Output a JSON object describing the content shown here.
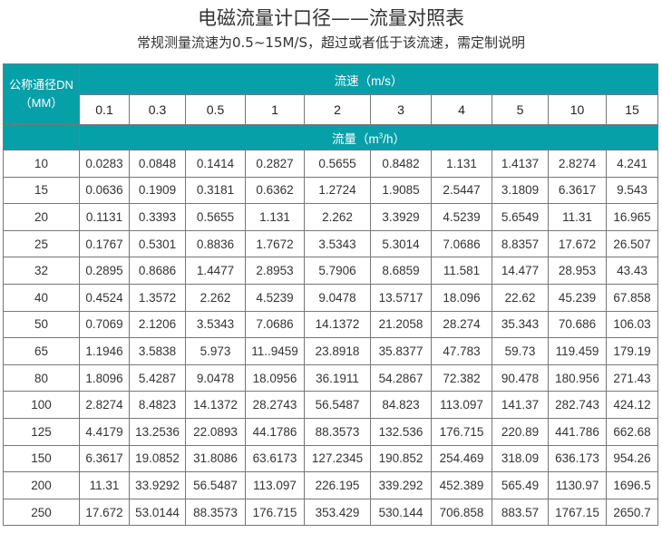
{
  "title": "电磁流量计口径——流量对照表",
  "subtitle": "常规测量流速为0.5~15M/S，超过或者低于该流速，需定制说明",
  "table": {
    "dn_header_line1": "公称通径DN",
    "dn_header_line2": "（MM）",
    "velocity_header": "流速（m/s）",
    "flow_header_prefix": "流量（m",
    "flow_header_sup": "3",
    "flow_header_suffix": "/h）",
    "velocities": [
      "0.1",
      "0.3",
      "0.5",
      "1",
      "2",
      "3",
      "4",
      "5",
      "10",
      "15"
    ],
    "rows": [
      {
        "dn": "10",
        "values": [
          "0.0283",
          "0.0848",
          "0.1414",
          "0.2827",
          "0.5655",
          "0.8482",
          "1.131",
          "1.4137",
          "2.8274",
          "4.241"
        ]
      },
      {
        "dn": "15",
        "values": [
          "0.0636",
          "0.1909",
          "0.3181",
          "0.6362",
          "1.2724",
          "1.9085",
          "2.5447",
          "3.1809",
          "6.3617",
          "9.543"
        ]
      },
      {
        "dn": "20",
        "values": [
          "0.1131",
          "0.3393",
          "0.5655",
          "1.131",
          "2.262",
          "3.3929",
          "4.5239",
          "5.6549",
          "11.31",
          "16.965"
        ]
      },
      {
        "dn": "25",
        "values": [
          "0.1767",
          "0.5301",
          "0.8836",
          "1.7672",
          "3.5343",
          "5.3014",
          "7.0686",
          "8.8357",
          "17.672",
          "26.507"
        ]
      },
      {
        "dn": "32",
        "values": [
          "0.2895",
          "0.8686",
          "1.4477",
          "2.8953",
          "5.7906",
          "8.6859",
          "11.581",
          "14.477",
          "28.953",
          "43.43"
        ]
      },
      {
        "dn": "40",
        "values": [
          "0.4524",
          "1.3572",
          "2.262",
          "4.5239",
          "9.0478",
          "13.5717",
          "18.096",
          "22.62",
          "45.239",
          "67.858"
        ]
      },
      {
        "dn": "50",
        "values": [
          "0.7069",
          "2.1206",
          "3.5343",
          "7.0686",
          "14.1372",
          "21.2058",
          "28.274",
          "35.343",
          "70.686",
          "106.03"
        ]
      },
      {
        "dn": "65",
        "values": [
          "1.1946",
          "3.5838",
          "5.973",
          "11..9459",
          "23.8918",
          "35.8377",
          "47.783",
          "59.73",
          "119.459",
          "179.19"
        ]
      },
      {
        "dn": "80",
        "values": [
          "1.8096",
          "5.4287",
          "9.0478",
          "18.0956",
          "36.1911",
          "54.2867",
          "72.382",
          "90.478",
          "180.956",
          "271.43"
        ]
      },
      {
        "dn": "100",
        "values": [
          "2.8274",
          "8.4823",
          "14.1372",
          "28.2743",
          "56.5487",
          "84.823",
          "113.097",
          "141.37",
          "282.743",
          "424.12"
        ]
      },
      {
        "dn": "125",
        "values": [
          "4.4179",
          "13.2536",
          "22.0893",
          "44.1786",
          "88.3573",
          "132.536",
          "176.715",
          "220.89",
          "441.786",
          "662.68"
        ]
      },
      {
        "dn": "150",
        "values": [
          "6.3617",
          "19.0852",
          "31.8086",
          "63.6173",
          "127.2345",
          "190.852",
          "254.469",
          "318.09",
          "636.173",
          "954.26"
        ]
      },
      {
        "dn": "200",
        "values": [
          "11.31",
          "33.9292",
          "56.5487",
          "113.097",
          "226.195",
          "339.292",
          "452.389",
          "565.49",
          "1130.97",
          "1696.5"
        ]
      },
      {
        "dn": "250",
        "values": [
          "17.672",
          "53.0144",
          "88.3573",
          "176.715",
          "353.429",
          "530.144",
          "706.858",
          "883.57",
          "1767.15",
          "2650.7"
        ]
      }
    ]
  },
  "colors": {
    "header_bg": "#06a0a9",
    "header_text": "#ffffff",
    "border": "#777777"
  }
}
